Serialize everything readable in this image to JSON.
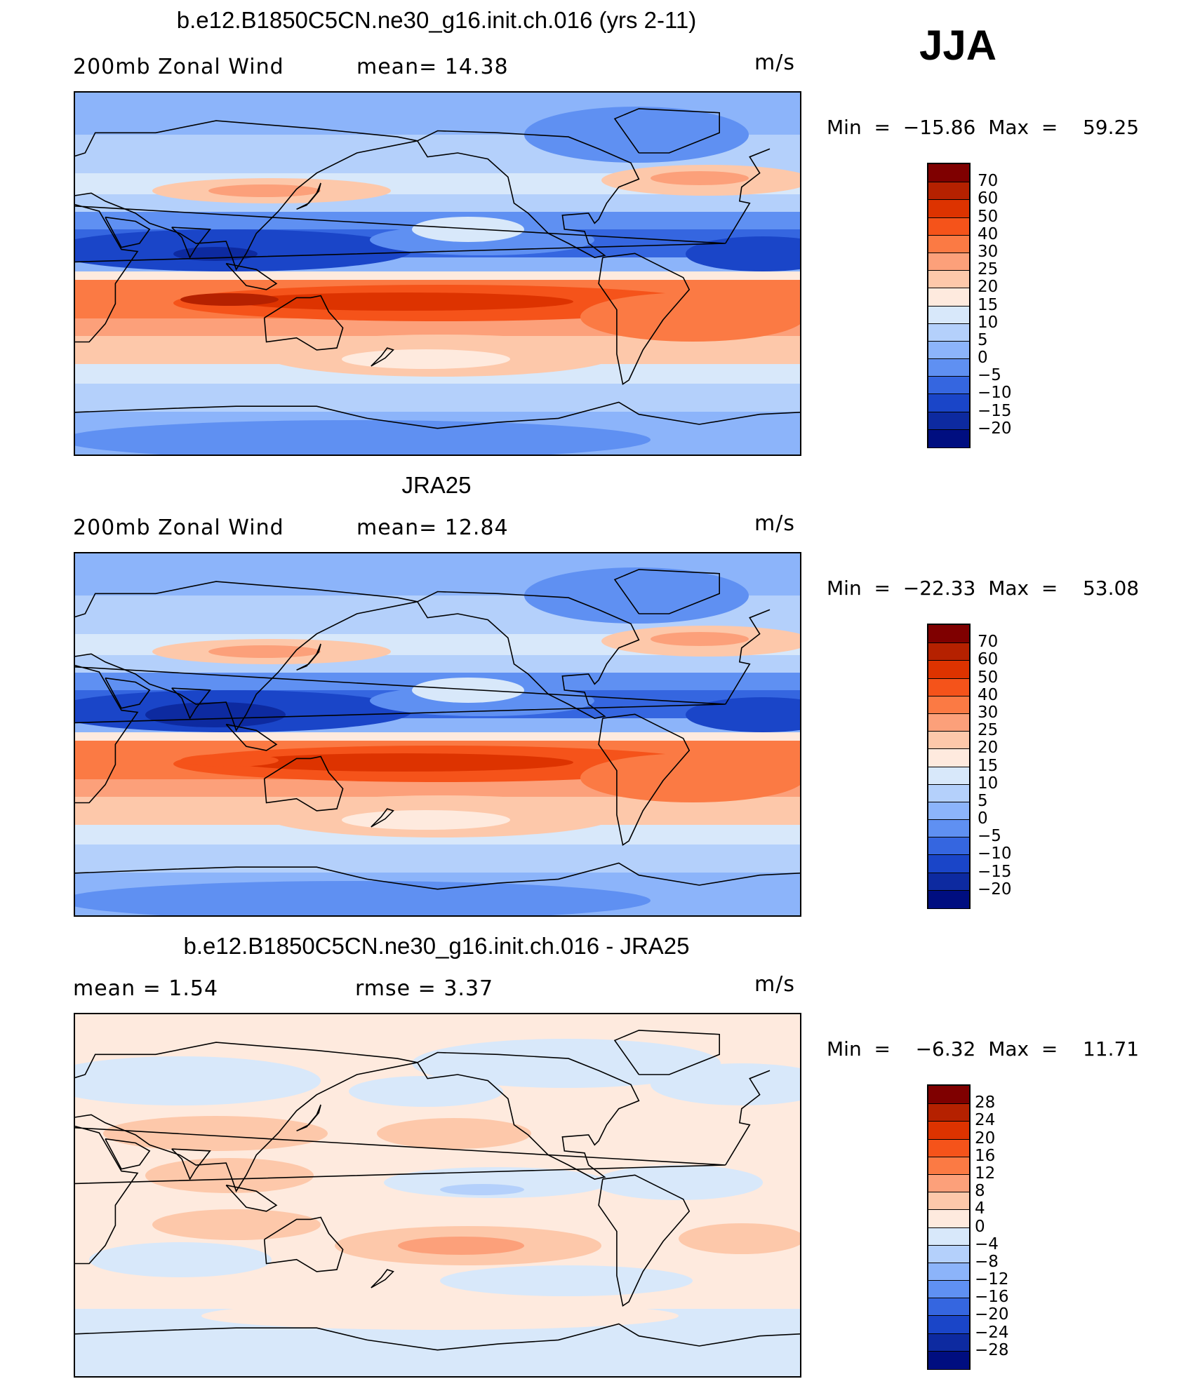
{
  "season": "JJA",
  "panels": [
    {
      "title": "b.e12.B1850C5CN.ne30_g16.init.ch.016 (yrs 2-11)",
      "left_label": "200mb  Zonal  Wind",
      "center_label": "mean=   14.38",
      "units": "m/s",
      "min_label": "Min",
      "min_value": "−15.86",
      "max_label": "Max",
      "max_value": "59.25",
      "colorbar": {
        "labels": [
          "70",
          "60",
          "50",
          "40",
          "30",
          "25",
          "20",
          "15",
          "10",
          "5",
          "0",
          "−5",
          "−10",
          "−15",
          "−20"
        ],
        "colors": [
          "#7f0000",
          "#b52100",
          "#dd3300",
          "#f5531a",
          "#fb7a44",
          "#fca07a",
          "#fdc8aa",
          "#feeade",
          "#d8e8fa",
          "#b4d0fb",
          "#8cb4fa",
          "#5f90f2",
          "#3566e0",
          "#1a45c8",
          "#0d2aa0",
          "#000e80"
        ]
      },
      "field_type": "model"
    },
    {
      "title": "JRA25",
      "left_label": "200mb  Zonal  Wind",
      "center_label": "mean=   12.84",
      "units": "m/s",
      "min_label": "Min",
      "min_value": "−22.33",
      "max_label": "Max",
      "max_value": "53.08",
      "colorbar": {
        "labels": [
          "70",
          "60",
          "50",
          "40",
          "30",
          "25",
          "20",
          "15",
          "10",
          "5",
          "0",
          "−5",
          "−10",
          "−15",
          "−20"
        ],
        "colors": [
          "#7f0000",
          "#b52100",
          "#dd3300",
          "#f5531a",
          "#fb7a44",
          "#fca07a",
          "#fdc8aa",
          "#feeade",
          "#d8e8fa",
          "#b4d0fb",
          "#8cb4fa",
          "#5f90f2",
          "#3566e0",
          "#1a45c8",
          "#0d2aa0",
          "#000e80"
        ]
      },
      "field_type": "obs"
    },
    {
      "title": "b.e12.B1850C5CN.ne30_g16.init.ch.016 - JRA25",
      "left_label": "mean  =     1.54",
      "center_label": "rmse  =     3.37",
      "units": "m/s",
      "min_label": "Min",
      "min_value": "−6.32",
      "max_label": "Max",
      "max_value": "11.71",
      "colorbar": {
        "labels": [
          "28",
          "24",
          "20",
          "16",
          "12",
          "8",
          "4",
          "0",
          "−4",
          "−8",
          "−12",
          "−16",
          "−20",
          "−24",
          "−28"
        ],
        "colors": [
          "#7f0000",
          "#b52100",
          "#dd3300",
          "#f5531a",
          "#fb7a44",
          "#fca07a",
          "#fdc8aa",
          "#feeade",
          "#d8e8fa",
          "#b4d0fb",
          "#8cb4fa",
          "#5f90f2",
          "#3566e0",
          "#1a45c8",
          "#0d2aa0",
          "#000e80"
        ]
      },
      "field_type": "diff"
    }
  ]
}
